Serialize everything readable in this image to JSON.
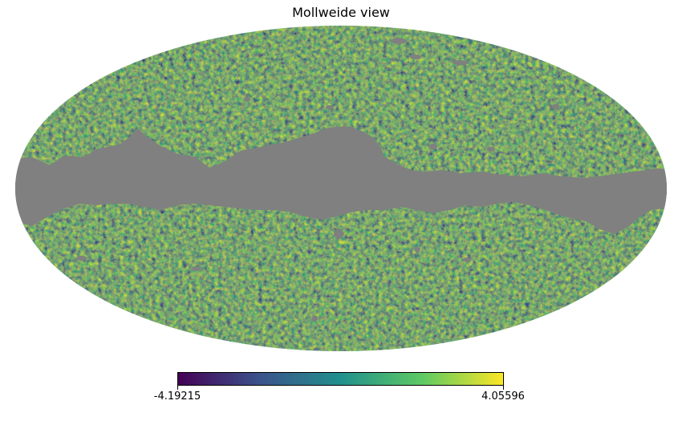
{
  "chart_data": {
    "type": "heatmap",
    "title": "Mollweide view",
    "projection": "mollweide",
    "colormap": "viridis",
    "colormap_stops": [
      "#440154",
      "#3b528b",
      "#21908d",
      "#5dc963",
      "#fde725"
    ],
    "masked_region": "galactic plane",
    "mask_color": "#808080",
    "colorbar": {
      "orientation": "horizontal",
      "min_label": "-4.19215",
      "max_label": "4.05596",
      "min": -4.19215,
      "max": 4.05596
    }
  }
}
